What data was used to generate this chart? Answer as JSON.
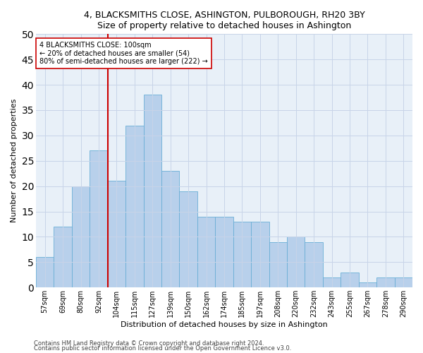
{
  "title": "4, BLACKSMITHS CLOSE, ASHINGTON, PULBOROUGH, RH20 3BY",
  "subtitle": "Size of property relative to detached houses in Ashington",
  "xlabel": "Distribution of detached houses by size in Ashington",
  "ylabel": "Number of detached properties",
  "bar_color": "#b8d0eb",
  "bar_edge_color": "#6aaed6",
  "bins": [
    "57sqm",
    "69sqm",
    "80sqm",
    "92sqm",
    "104sqm",
    "115sqm",
    "127sqm",
    "139sqm",
    "150sqm",
    "162sqm",
    "174sqm",
    "185sqm",
    "197sqm",
    "208sqm",
    "220sqm",
    "232sqm",
    "243sqm",
    "255sqm",
    "267sqm",
    "278sqm",
    "290sqm"
  ],
  "values": [
    6,
    12,
    20,
    27,
    21,
    32,
    38,
    23,
    19,
    14,
    14,
    13,
    13,
    9,
    10,
    9,
    2,
    3,
    1,
    2,
    2
  ],
  "vline_x": 3.5,
  "vline_color": "#cc0000",
  "annotation_line1": "4 BLACKSMITHS CLOSE: 100sqm",
  "annotation_line2": "← 20% of detached houses are smaller (54)",
  "annotation_line3": "80% of semi-detached houses are larger (222) →",
  "annotation_box_color": "#ffffff",
  "annotation_box_edge": "#cc0000",
  "ylim": [
    0,
    50
  ],
  "yticks": [
    0,
    5,
    10,
    15,
    20,
    25,
    30,
    35,
    40,
    45,
    50
  ],
  "footer1": "Contains HM Land Registry data © Crown copyright and database right 2024.",
  "footer2": "Contains public sector information licensed under the Open Government Licence v3.0.",
  "bg_color": "#ffffff",
  "plot_bg_color": "#e8f0f8",
  "grid_color": "#c8d4e8"
}
